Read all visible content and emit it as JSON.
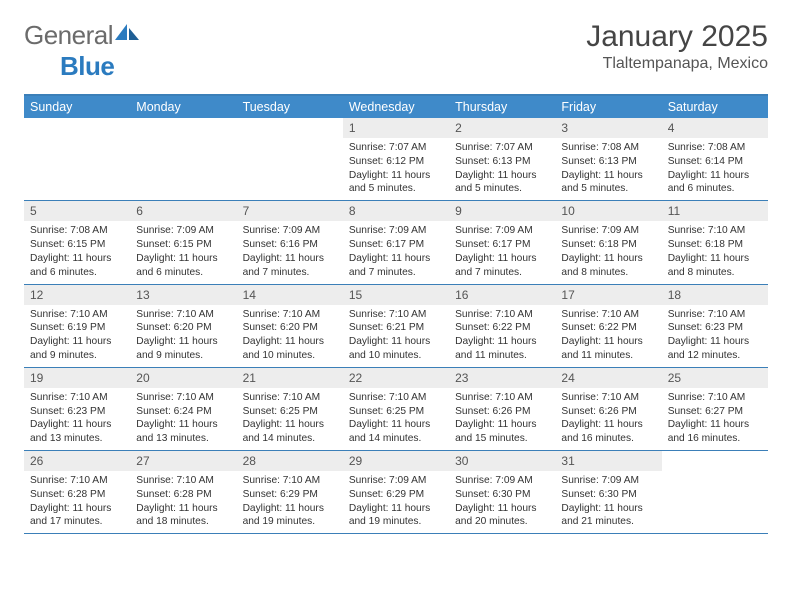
{
  "logo": {
    "text1": "General",
    "text2": "Blue"
  },
  "title": "January 2025",
  "location": "Tlaltempanapa, Mexico",
  "colors": {
    "header_bg": "#3f8ac9",
    "border": "#3b7fb8",
    "daynum_bg": "#ededed",
    "title_color": "#454545",
    "logo_gray": "#6b6b6b",
    "logo_blue": "#2b7bbf",
    "text": "#333333",
    "white": "#ffffff"
  },
  "fonts": {
    "title_size": 30,
    "location_size": 16,
    "dayhead_size": 12.5,
    "daynum_size": 12,
    "body_size": 10.2,
    "logo_size": 26
  },
  "day_headers": [
    "Sunday",
    "Monday",
    "Tuesday",
    "Wednesday",
    "Thursday",
    "Friday",
    "Saturday"
  ],
  "weeks": [
    [
      {
        "empty": true
      },
      {
        "empty": true
      },
      {
        "empty": true
      },
      {
        "n": "1",
        "sunrise": "7:07 AM",
        "sunset": "6:12 PM",
        "dl1": "Daylight: 11 hours",
        "dl2": "and 5 minutes."
      },
      {
        "n": "2",
        "sunrise": "7:07 AM",
        "sunset": "6:13 PM",
        "dl1": "Daylight: 11 hours",
        "dl2": "and 5 minutes."
      },
      {
        "n": "3",
        "sunrise": "7:08 AM",
        "sunset": "6:13 PM",
        "dl1": "Daylight: 11 hours",
        "dl2": "and 5 minutes."
      },
      {
        "n": "4",
        "sunrise": "7:08 AM",
        "sunset": "6:14 PM",
        "dl1": "Daylight: 11 hours",
        "dl2": "and 6 minutes."
      }
    ],
    [
      {
        "n": "5",
        "sunrise": "7:08 AM",
        "sunset": "6:15 PM",
        "dl1": "Daylight: 11 hours",
        "dl2": "and 6 minutes."
      },
      {
        "n": "6",
        "sunrise": "7:09 AM",
        "sunset": "6:15 PM",
        "dl1": "Daylight: 11 hours",
        "dl2": "and 6 minutes."
      },
      {
        "n": "7",
        "sunrise": "7:09 AM",
        "sunset": "6:16 PM",
        "dl1": "Daylight: 11 hours",
        "dl2": "and 7 minutes."
      },
      {
        "n": "8",
        "sunrise": "7:09 AM",
        "sunset": "6:17 PM",
        "dl1": "Daylight: 11 hours",
        "dl2": "and 7 minutes."
      },
      {
        "n": "9",
        "sunrise": "7:09 AM",
        "sunset": "6:17 PM",
        "dl1": "Daylight: 11 hours",
        "dl2": "and 7 minutes."
      },
      {
        "n": "10",
        "sunrise": "7:09 AM",
        "sunset": "6:18 PM",
        "dl1": "Daylight: 11 hours",
        "dl2": "and 8 minutes."
      },
      {
        "n": "11",
        "sunrise": "7:10 AM",
        "sunset": "6:18 PM",
        "dl1": "Daylight: 11 hours",
        "dl2": "and 8 minutes."
      }
    ],
    [
      {
        "n": "12",
        "sunrise": "7:10 AM",
        "sunset": "6:19 PM",
        "dl1": "Daylight: 11 hours",
        "dl2": "and 9 minutes."
      },
      {
        "n": "13",
        "sunrise": "7:10 AM",
        "sunset": "6:20 PM",
        "dl1": "Daylight: 11 hours",
        "dl2": "and 9 minutes."
      },
      {
        "n": "14",
        "sunrise": "7:10 AM",
        "sunset": "6:20 PM",
        "dl1": "Daylight: 11 hours",
        "dl2": "and 10 minutes."
      },
      {
        "n": "15",
        "sunrise": "7:10 AM",
        "sunset": "6:21 PM",
        "dl1": "Daylight: 11 hours",
        "dl2": "and 10 minutes."
      },
      {
        "n": "16",
        "sunrise": "7:10 AM",
        "sunset": "6:22 PM",
        "dl1": "Daylight: 11 hours",
        "dl2": "and 11 minutes."
      },
      {
        "n": "17",
        "sunrise": "7:10 AM",
        "sunset": "6:22 PM",
        "dl1": "Daylight: 11 hours",
        "dl2": "and 11 minutes."
      },
      {
        "n": "18",
        "sunrise": "7:10 AM",
        "sunset": "6:23 PM",
        "dl1": "Daylight: 11 hours",
        "dl2": "and 12 minutes."
      }
    ],
    [
      {
        "n": "19",
        "sunrise": "7:10 AM",
        "sunset": "6:23 PM",
        "dl1": "Daylight: 11 hours",
        "dl2": "and 13 minutes."
      },
      {
        "n": "20",
        "sunrise": "7:10 AM",
        "sunset": "6:24 PM",
        "dl1": "Daylight: 11 hours",
        "dl2": "and 13 minutes."
      },
      {
        "n": "21",
        "sunrise": "7:10 AM",
        "sunset": "6:25 PM",
        "dl1": "Daylight: 11 hours",
        "dl2": "and 14 minutes."
      },
      {
        "n": "22",
        "sunrise": "7:10 AM",
        "sunset": "6:25 PM",
        "dl1": "Daylight: 11 hours",
        "dl2": "and 14 minutes."
      },
      {
        "n": "23",
        "sunrise": "7:10 AM",
        "sunset": "6:26 PM",
        "dl1": "Daylight: 11 hours",
        "dl2": "and 15 minutes."
      },
      {
        "n": "24",
        "sunrise": "7:10 AM",
        "sunset": "6:26 PM",
        "dl1": "Daylight: 11 hours",
        "dl2": "and 16 minutes."
      },
      {
        "n": "25",
        "sunrise": "7:10 AM",
        "sunset": "6:27 PM",
        "dl1": "Daylight: 11 hours",
        "dl2": "and 16 minutes."
      }
    ],
    [
      {
        "n": "26",
        "sunrise": "7:10 AM",
        "sunset": "6:28 PM",
        "dl1": "Daylight: 11 hours",
        "dl2": "and 17 minutes."
      },
      {
        "n": "27",
        "sunrise": "7:10 AM",
        "sunset": "6:28 PM",
        "dl1": "Daylight: 11 hours",
        "dl2": "and 18 minutes."
      },
      {
        "n": "28",
        "sunrise": "7:10 AM",
        "sunset": "6:29 PM",
        "dl1": "Daylight: 11 hours",
        "dl2": "and 19 minutes."
      },
      {
        "n": "29",
        "sunrise": "7:09 AM",
        "sunset": "6:29 PM",
        "dl1": "Daylight: 11 hours",
        "dl2": "and 19 minutes."
      },
      {
        "n": "30",
        "sunrise": "7:09 AM",
        "sunset": "6:30 PM",
        "dl1": "Daylight: 11 hours",
        "dl2": "and 20 minutes."
      },
      {
        "n": "31",
        "sunrise": "7:09 AM",
        "sunset": "6:30 PM",
        "dl1": "Daylight: 11 hours",
        "dl2": "and 21 minutes."
      },
      {
        "empty": true
      }
    ]
  ],
  "labels": {
    "sunrise": "Sunrise:",
    "sunset": "Sunset:"
  }
}
